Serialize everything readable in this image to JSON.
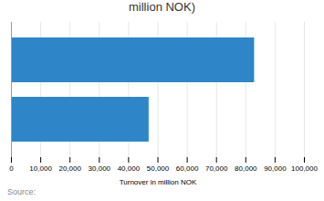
{
  "chart_data": {
    "type": "bar",
    "orientation": "horizontal",
    "title": "million NOK)",
    "categories": [
      null,
      null
    ],
    "values": [
      47000,
      83000
    ],
    "color": "#2e86c8",
    "xlabel": "Turnover in million NOK",
    "xlim": [
      0,
      100000
    ],
    "xticks": [
      0,
      {
        "value": 10000,
        "label": "10,000"
      },
      {
        "value": 20000,
        "label": "20,000"
      },
      {
        "value": 30000,
        "label": "30,000"
      },
      {
        "value": 40000,
        "label": "40,000"
      },
      {
        "value": 50000,
        "label": "50,000"
      },
      {
        "value": 60000,
        "label": "60,000"
      },
      {
        "value": 70000,
        "label": "70,000"
      },
      {
        "value": 80000,
        "label": "80,000"
      },
      {
        "value": 90000,
        "label": "90,000"
      },
      {
        "value": 100000,
        "label": "100,000"
      }
    ],
    "grid": true,
    "annotations": [
      "Source:"
    ]
  }
}
